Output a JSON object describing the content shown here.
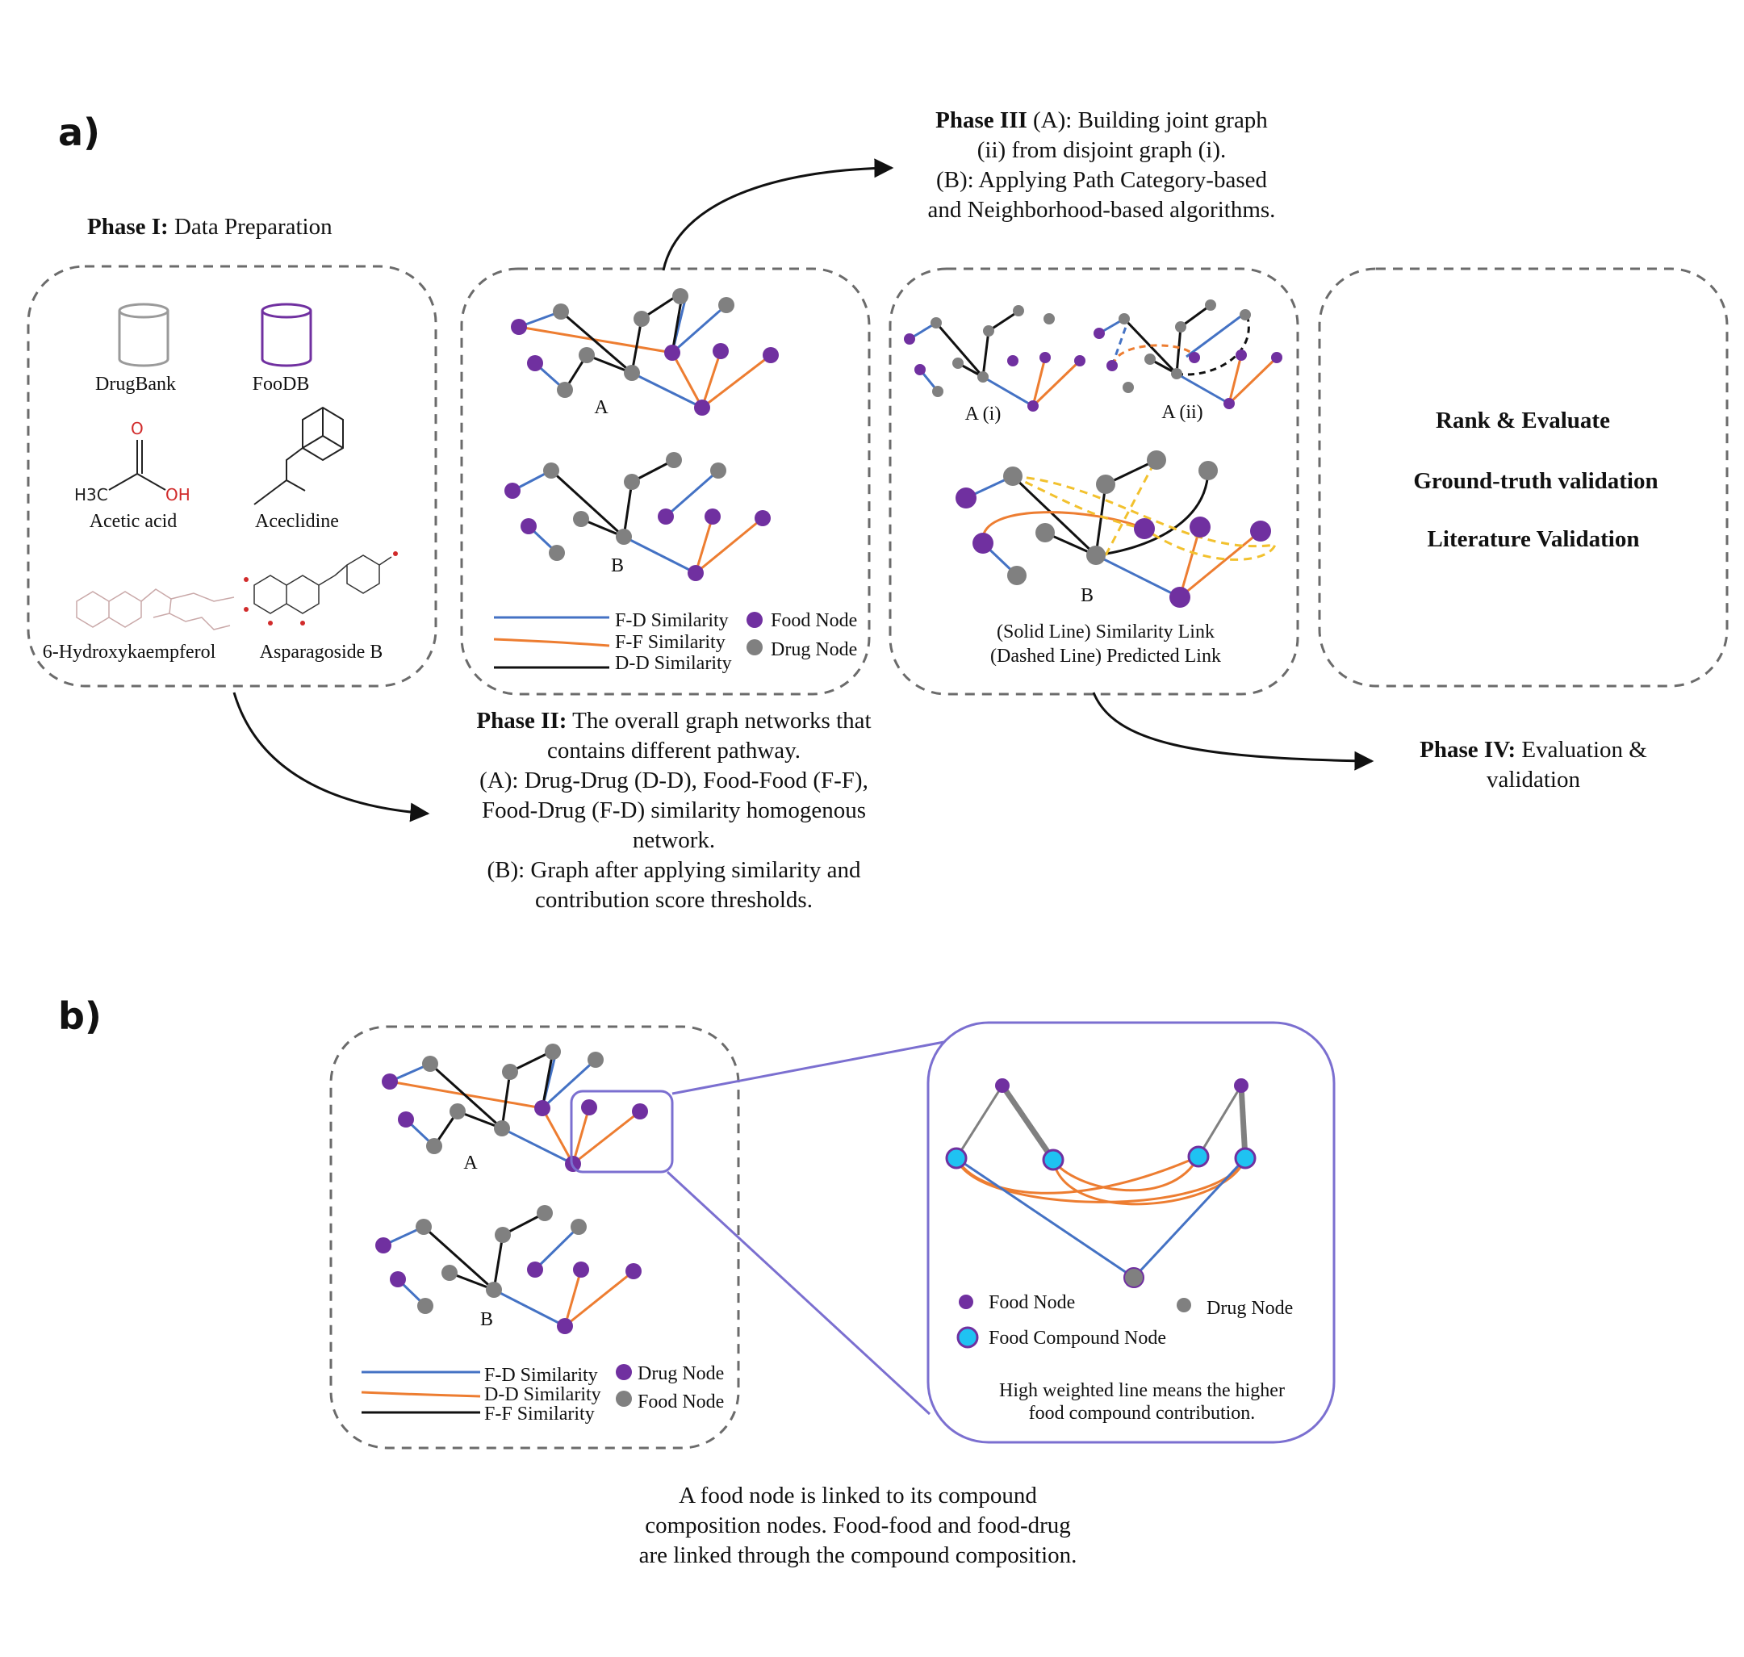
{
  "panel_a": {
    "label": "a)",
    "phase1": {
      "title_bold": "Phase I:",
      "title_rest": " Data Preparation",
      "db1": "DrugBank",
      "db2": "FooDB",
      "mol1": "Acetic acid",
      "mol2": "Aceclidine",
      "mol3": "6-Hydroxykaempferol",
      "mol4": "Asparagoside B",
      "mol1_h3c": "H3C",
      "mol1_oh": "OH",
      "mol1_o": "O"
    },
    "phase2": {
      "graph_a": "A",
      "graph_b": "B",
      "legend": {
        "fd": "F-D Similarity",
        "ff": "F-F Similarity",
        "dd": "D-D Similarity",
        "food": "Food Node",
        "drug": "Drug Node"
      },
      "caption_bold": "Phase II:",
      "caption_l1_rest": " The overall graph networks that",
      "caption_l2": "contains different pathway.",
      "caption_l3": "(A): Drug-Drug (D-D), Food-Food (F-F),",
      "caption_l4": "Food-Drug (F-D) similarity homogenous",
      "caption_l5": "network.",
      "caption_l6": "(B): Graph after applying similarity and",
      "caption_l7": "contribution score thresholds."
    },
    "phase3": {
      "title_bold": "Phase III",
      "title_l1_rest": " (A): Building joint graph",
      "title_l2": "(ii) from disjoint graph (i).",
      "title_l3": "(B): Applying Path Category-based",
      "title_l4": "and Neighborhood-based algorithms.",
      "graph_ai": "A (i)",
      "graph_aii": "A (ii)",
      "graph_b": "B",
      "legend_l1": "(Solid Line) Similarity Link",
      "legend_l2": "(Dashed Line) Predicted Link"
    },
    "phase4": {
      "item1": "Rank & Evaluate",
      "item2": "Ground-truth validation",
      "item3": "Literature Validation",
      "caption_bold": "Phase IV:",
      "caption_l1_rest": " Evaluation &",
      "caption_l2": "validation"
    }
  },
  "panel_b": {
    "label": "b)",
    "graph_a": "A",
    "graph_b": "B",
    "legend": {
      "fd": "F-D Similarity",
      "dd": "D-D Similarity",
      "ff": "F-F Similarity",
      "drug": "Drug Node",
      "food": "Food Node"
    },
    "zoom": {
      "legend_food": "Food Node",
      "legend_drug": "Drug Node",
      "legend_compound": "Food Compound Node",
      "note_l1": "High weighted line means the higher",
      "note_l2": "food compound contribution."
    },
    "caption_l1": "A food node is linked to its compound",
    "caption_l2": "composition nodes. Food-food and food-drug",
    "caption_l3": "are linked through the compound composition."
  },
  "colors": {
    "food_node": "#7030a0",
    "drug_node": "#808080",
    "fd_similarity": "#4472c4",
    "ff_similarity": "#ed7d31",
    "dd_similarity": "#111111",
    "predicted_link": "#f2c12e",
    "compound_node": "#1fc2f2",
    "zoom_frame": "#7b6fd0"
  }
}
